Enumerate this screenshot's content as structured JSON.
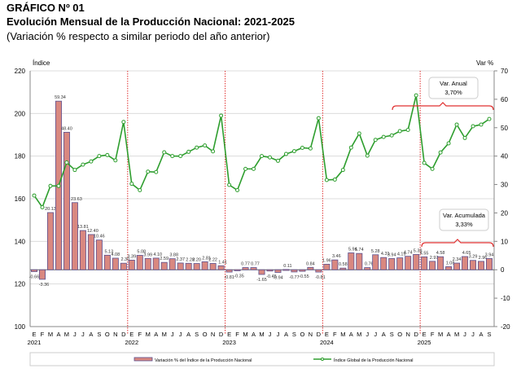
{
  "header": {
    "label": "GRÁFICO Nº 01",
    "title": "Evolución Mensual de la Producción Nacional: 2021-2025",
    "subtitle": "(Variación % respecto a similar periodo del año anterior)"
  },
  "chart_data": {
    "type": "bar+line",
    "title": "Evolución Mensual de la Producción Nacional: 2021-2025",
    "subtitle": "(Variación % respecto a similar periodo del año anterior)",
    "ylabel_left": "Índice",
    "ylabel_right": "Var %",
    "ylim_left": [
      100,
      220
    ],
    "yticks_left": [
      100,
      120,
      140,
      160,
      180,
      200,
      220
    ],
    "ylim_right": [
      -20,
      70
    ],
    "yticks_right": [
      -20,
      -10,
      0,
      10,
      20,
      30,
      40,
      50,
      60,
      70
    ],
    "grid": true,
    "legend_placement": "bottom",
    "month_labels": [
      "E",
      "F",
      "M",
      "A",
      "M",
      "J",
      "J",
      "A",
      "S",
      "O",
      "N",
      "D"
    ],
    "years": [
      "2021",
      "2022",
      "2023",
      "2024",
      "2025"
    ],
    "series": [
      {
        "name": "Variación % del Índice de la Producción Nacional",
        "type": "bar",
        "axis": "right",
        "color": "#d98880",
        "edge": "#5b4f8f",
        "values": [
          -0.66,
          -3.36,
          20.13,
          59.34,
          48.4,
          23.63,
          13.81,
          12.4,
          10.46,
          5.13,
          4.08,
          2.3,
          3.39,
          5.08,
          3.99,
          4.1,
          2.59,
          3.88,
          2.37,
          2.28,
          2.2,
          2.81,
          2.22,
          1.41,
          -0.81,
          -0.35,
          0.77,
          0.77,
          -1.65,
          -0.45,
          -0.94,
          0.11,
          -0.77,
          -0.55,
          0.84,
          -0.81,
          1.96,
          3.46,
          0.58,
          5.94,
          5.74,
          0.76,
          5.28,
          4.31,
          3.94,
          4.19,
          4.74,
          5.38,
          4.55,
          2.97,
          4.58,
          1.08,
          2.34,
          4.65,
          3.29,
          2.96,
          3.94
        ]
      },
      {
        "name": "Índice Global de la Producción Nacional",
        "type": "line",
        "axis": "left",
        "color": "#2e9e2e",
        "values": [
          161.5,
          156,
          166,
          166,
          177,
          173.5,
          176,
          177.5,
          180,
          180.5,
          178,
          196,
          167,
          164,
          172.7,
          172.5,
          181.8,
          180,
          180,
          182,
          184,
          185,
          182.2,
          199,
          166.5,
          164,
          174,
          174,
          180,
          179.4,
          177.8,
          181,
          182.3,
          183.9,
          183.6,
          197.8,
          168.8,
          169,
          173.5,
          184,
          190.6,
          180.2,
          187.6,
          189,
          189.7,
          191.7,
          192.3,
          208.5,
          176.8,
          174,
          181.7,
          186,
          194.8,
          188.5,
          194,
          194.8,
          197.4
        ]
      }
    ],
    "annotations": [
      {
        "title": "Var. Anual",
        "value": "3,70%",
        "from": "2024-10",
        "to": "2025-09"
      },
      {
        "title": "Var. Acumulada",
        "value": "3,33%",
        "from": "2025-01",
        "to": "2025-09"
      }
    ],
    "colors": {
      "year_divider": "#e03030",
      "bracket": "#e03030"
    }
  }
}
